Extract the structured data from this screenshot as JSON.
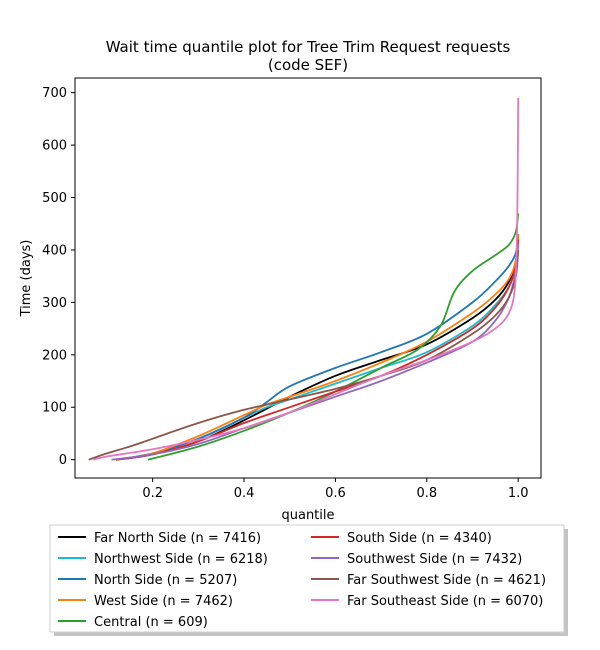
{
  "chart_data": {
    "type": "line",
    "title": [
      "Wait time quantile plot for Tree Trim Request  requests",
      "(code SEF)"
    ],
    "xlabel": "quantile",
    "ylabel": "Time (days)",
    "xlim": [
      0.03,
      1.05
    ],
    "ylim": [
      -35,
      728
    ],
    "xticks": [
      0.2,
      0.4,
      0.6,
      0.8,
      1.0
    ],
    "xtick_labels": [
      "0.2",
      "0.4",
      "0.6",
      "0.8",
      "1.0"
    ],
    "yticks": [
      0,
      100,
      200,
      300,
      400,
      500,
      600,
      700
    ],
    "ytick_labels": [
      "0",
      "100",
      "200",
      "300",
      "400",
      "500",
      "600",
      "700"
    ],
    "grid": false,
    "legend": {
      "position": "bottom",
      "columns": 2
    },
    "series": [
      {
        "name": "Far North Side (n = 7416)",
        "color": "#000000",
        "points": [
          [
            0.12,
            0
          ],
          [
            0.2,
            10
          ],
          [
            0.3,
            35
          ],
          [
            0.4,
            75
          ],
          [
            0.5,
            120
          ],
          [
            0.6,
            160
          ],
          [
            0.7,
            190
          ],
          [
            0.8,
            220
          ],
          [
            0.9,
            270
          ],
          [
            0.95,
            305
          ],
          [
            0.98,
            340
          ],
          [
            0.995,
            380
          ],
          [
            1.0,
            430
          ]
        ]
      },
      {
        "name": "Northwest Side (n = 6218)",
        "color": "#17becf",
        "points": [
          [
            0.12,
            0
          ],
          [
            0.2,
            12
          ],
          [
            0.3,
            40
          ],
          [
            0.4,
            80
          ],
          [
            0.45,
            100
          ],
          [
            0.5,
            115
          ],
          [
            0.6,
            145
          ],
          [
            0.7,
            175
          ],
          [
            0.8,
            205
          ],
          [
            0.9,
            255
          ],
          [
            0.95,
            295
          ],
          [
            0.98,
            330
          ],
          [
            0.995,
            370
          ],
          [
            1.0,
            420
          ]
        ]
      },
      {
        "name": "North Side (n = 5207)",
        "color": "#1f77b4",
        "points": [
          [
            0.12,
            0
          ],
          [
            0.2,
            12
          ],
          [
            0.3,
            40
          ],
          [
            0.4,
            80
          ],
          [
            0.45,
            110
          ],
          [
            0.5,
            140
          ],
          [
            0.6,
            175
          ],
          [
            0.7,
            205
          ],
          [
            0.8,
            240
          ],
          [
            0.9,
            300
          ],
          [
            0.95,
            340
          ],
          [
            0.98,
            370
          ],
          [
            0.995,
            395
          ],
          [
            1.0,
            430
          ]
        ]
      },
      {
        "name": "West Side (n = 7462)",
        "color": "#ff7f0e",
        "points": [
          [
            0.12,
            0
          ],
          [
            0.2,
            12
          ],
          [
            0.3,
            45
          ],
          [
            0.4,
            85
          ],
          [
            0.45,
            105
          ],
          [
            0.5,
            120
          ],
          [
            0.6,
            150
          ],
          [
            0.7,
            185
          ],
          [
            0.8,
            225
          ],
          [
            0.9,
            280
          ],
          [
            0.95,
            315
          ],
          [
            0.98,
            345
          ],
          [
            0.995,
            380
          ],
          [
            1.0,
            430
          ]
        ]
      },
      {
        "name": "Central (n = 609)",
        "color": "#2ca02c",
        "points": [
          [
            0.19,
            0
          ],
          [
            0.3,
            25
          ],
          [
            0.4,
            55
          ],
          [
            0.5,
            90
          ],
          [
            0.6,
            130
          ],
          [
            0.7,
            175
          ],
          [
            0.78,
            210
          ],
          [
            0.83,
            255
          ],
          [
            0.86,
            320
          ],
          [
            0.9,
            360
          ],
          [
            0.95,
            390
          ],
          [
            0.98,
            410
          ],
          [
            0.995,
            435
          ],
          [
            1.0,
            470
          ]
        ]
      },
      {
        "name": "South Side (n = 4340)",
        "color": "#d62728",
        "points": [
          [
            0.12,
            0
          ],
          [
            0.2,
            10
          ],
          [
            0.3,
            35
          ],
          [
            0.4,
            70
          ],
          [
            0.5,
            100
          ],
          [
            0.6,
            130
          ],
          [
            0.7,
            160
          ],
          [
            0.8,
            200
          ],
          [
            0.9,
            250
          ],
          [
            0.95,
            290
          ],
          [
            0.98,
            330
          ],
          [
            0.995,
            370
          ],
          [
            1.0,
            420
          ]
        ]
      },
      {
        "name": "Southwest Side (n = 7432)",
        "color": "#9467bd",
        "points": [
          [
            0.11,
            0
          ],
          [
            0.2,
            10
          ],
          [
            0.3,
            30
          ],
          [
            0.4,
            60
          ],
          [
            0.5,
            90
          ],
          [
            0.6,
            120
          ],
          [
            0.7,
            150
          ],
          [
            0.8,
            185
          ],
          [
            0.9,
            225
          ],
          [
            0.95,
            265
          ],
          [
            0.98,
            310
          ],
          [
            0.995,
            360
          ],
          [
            1.0,
            410
          ]
        ]
      },
      {
        "name": "Far Southwest Side (n = 4621)",
        "color": "#8c564b",
        "points": [
          [
            0.06,
            0
          ],
          [
            0.1,
            12
          ],
          [
            0.15,
            25
          ],
          [
            0.2,
            40
          ],
          [
            0.3,
            70
          ],
          [
            0.4,
            95
          ],
          [
            0.5,
            115
          ],
          [
            0.6,
            135
          ],
          [
            0.7,
            160
          ],
          [
            0.8,
            190
          ],
          [
            0.9,
            240
          ],
          [
            0.95,
            275
          ],
          [
            0.98,
            310
          ],
          [
            0.995,
            350
          ],
          [
            1.0,
            400
          ]
        ]
      },
      {
        "name": "Far Southeast Side (n = 6070)",
        "color": "#e377c2",
        "points": [
          [
            0.07,
            0
          ],
          [
            0.1,
            6
          ],
          [
            0.2,
            20
          ],
          [
            0.3,
            38
          ],
          [
            0.4,
            60
          ],
          [
            0.5,
            90
          ],
          [
            0.6,
            125
          ],
          [
            0.7,
            160
          ],
          [
            0.8,
            190
          ],
          [
            0.9,
            225
          ],
          [
            0.95,
            250
          ],
          [
            0.98,
            280
          ],
          [
            0.993,
            330
          ],
          [
            0.998,
            450
          ],
          [
            1.0,
            690
          ]
        ]
      }
    ]
  }
}
